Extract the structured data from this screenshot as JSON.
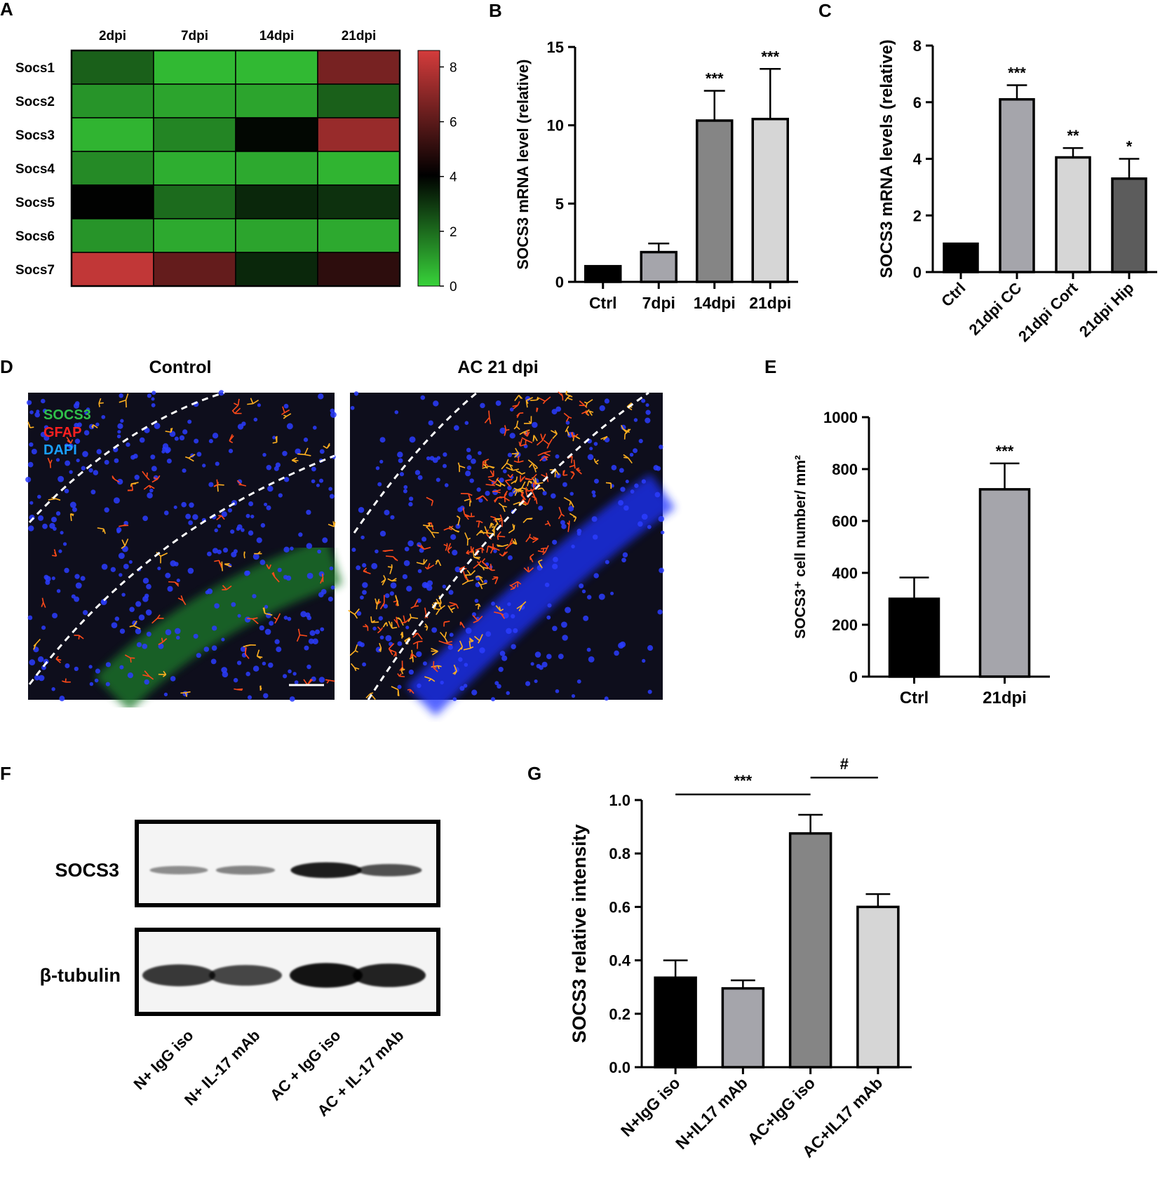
{
  "colors": {
    "black": "#000000",
    "bar_gray": "#a5a5ab",
    "bar_dark": "#858585",
    "bar_light": "#d6d6d6",
    "bar_darker": "#5c5c5c",
    "heat_low": "#38d33a",
    "heat_mid": "#000000",
    "heat_high": "#d43c3c"
  },
  "panels": {
    "A": {
      "label": "A"
    },
    "B": {
      "label": "B"
    },
    "C": {
      "label": "C"
    },
    "D": {
      "label": "D"
    },
    "E": {
      "label": "E"
    },
    "F": {
      "label": "F"
    },
    "G": {
      "label": "G"
    }
  },
  "chart_data": [
    {
      "id": "A",
      "type": "heatmap",
      "columns": [
        "2dpi",
        "7dpi",
        "14dpi",
        "21dpi"
      ],
      "rows": [
        "Socs1",
        "Socs2",
        "Socs3",
        "Socs4",
        "Socs5",
        "Socs6",
        "Socs7"
      ],
      "values": [
        [
          2.2,
          0.5,
          0.5,
          6.6
        ],
        [
          1.2,
          0.9,
          0.9,
          2.2
        ],
        [
          0.6,
          1.5,
          3.9,
          7.3
        ],
        [
          1.4,
          0.7,
          0.8,
          0.6
        ],
        [
          4.0,
          2.0,
          3.3,
          3.1
        ],
        [
          1.2,
          0.8,
          0.9,
          0.8
        ],
        [
          8.2,
          6.2,
          3.3,
          5.0
        ]
      ],
      "colorbar": {
        "range": [
          0,
          8.6
        ],
        "ticks": [
          0,
          2,
          4,
          6,
          8
        ]
      }
    },
    {
      "id": "B",
      "type": "bar",
      "ylabel": "SOCS3 mRNA level (relative)",
      "categories": [
        "Ctrl",
        "7dpi",
        "14dpi",
        "21dpi"
      ],
      "values": [
        1.0,
        1.9,
        10.3,
        10.4
      ],
      "errors": [
        0,
        0.55,
        1.9,
        3.2
      ],
      "significance": [
        "",
        "",
        "***",
        "***"
      ],
      "ylim": [
        0,
        15
      ],
      "yticks": [
        0,
        5,
        10,
        15
      ]
    },
    {
      "id": "C",
      "type": "bar",
      "ylabel": "SOCS3 mRNA levels (relative)",
      "categories": [
        "Ctrl",
        "21dpi CC",
        "21dpi Cort",
        "21dpi Hip"
      ],
      "values": [
        1.0,
        6.1,
        4.05,
        3.3
      ],
      "errors": [
        0,
        0.5,
        0.33,
        0.7
      ],
      "significance": [
        "",
        "***",
        "**",
        "*"
      ],
      "ylim": [
        0,
        8
      ],
      "yticks": [
        0,
        2,
        4,
        6,
        8
      ]
    },
    {
      "id": "E",
      "type": "bar",
      "ylabel": "SOCS3⁺ cell number/ mm²",
      "categories": [
        "Ctrl",
        "21dpi"
      ],
      "values": [
        300,
        722
      ],
      "errors": [
        82,
        100
      ],
      "significance": [
        "",
        "***"
      ],
      "ylim": [
        0,
        1000
      ],
      "yticks": [
        0,
        200,
        400,
        600,
        800,
        1000
      ]
    },
    {
      "id": "G",
      "type": "bar",
      "ylabel": "SOCS3 relative intensity",
      "categories": [
        "N+IgG iso",
        "N+IL17 mAb",
        "AC+IgG iso",
        "AC+IL17 mAb"
      ],
      "values": [
        0.335,
        0.295,
        0.875,
        0.6
      ],
      "errors": [
        0.065,
        0.03,
        0.07,
        0.048
      ],
      "brackets": [
        {
          "from": 0,
          "to": 2,
          "label": "***"
        },
        {
          "from": 2,
          "to": 3,
          "label": "#"
        }
      ],
      "ylim": [
        0,
        1.0
      ],
      "yticks": [
        0.0,
        0.2,
        0.4,
        0.6,
        0.8,
        1.0
      ]
    }
  ],
  "micrographs": {
    "control_title": "Control",
    "ac_title": "AC 21 dpi",
    "legend": [
      "SOCS3",
      "GFAP",
      "DAPI"
    ],
    "legend_colors": [
      "#2fbf4a",
      "#ff2020",
      "#1aa0ff"
    ]
  },
  "western": {
    "rows": [
      "SOCS3",
      "β-tubulin"
    ],
    "lanes": [
      "N+ IgG iso",
      "N+ IL-17 mAb",
      "AC + IgG iso",
      "AC + IL-17 mAb"
    ],
    "socs3_intensity": [
      0.25,
      0.3,
      0.9,
      0.6
    ],
    "tubulin_intensity": [
      0.7,
      0.6,
      0.95,
      0.85
    ]
  }
}
